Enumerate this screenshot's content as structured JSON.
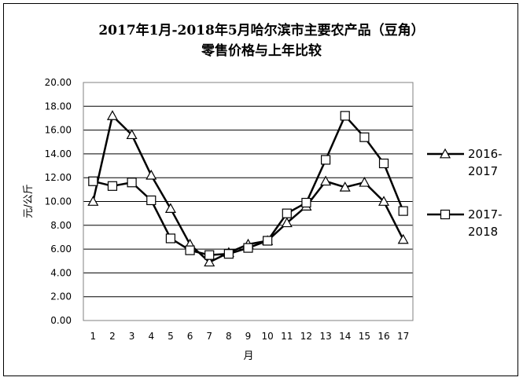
{
  "chart_data": {
    "type": "line",
    "title_line1": "2017年1月-2018年5月哈尔滨市主要农产品（豆角）",
    "title_line2": "零售价格与上年比较",
    "xlabel": "月",
    "ylabel": "元/公斤",
    "ylim": [
      0,
      20
    ],
    "yticks": [
      "0.00",
      "2.00",
      "4.00",
      "6.00",
      "8.00",
      "10.00",
      "12.00",
      "14.00",
      "16.00",
      "18.00",
      "20.00"
    ],
    "categories": [
      "1",
      "2",
      "3",
      "4",
      "5",
      "6",
      "7",
      "8",
      "9",
      "10",
      "11",
      "12",
      "13",
      "14",
      "15",
      "16",
      "17"
    ],
    "grid": true,
    "legend_position": "right",
    "series": [
      {
        "name": "2016-2017",
        "legend_line1": "2016-",
        "legend_line2": "2017",
        "marker": "triangle",
        "color": "#000000",
        "values": [
          10.0,
          17.2,
          15.6,
          12.2,
          9.4,
          6.4,
          4.9,
          5.7,
          6.4,
          6.7,
          8.2,
          9.6,
          11.7,
          11.2,
          11.6,
          10.0,
          6.8
        ]
      },
      {
        "name": "2017-2018",
        "legend_line1": "2017-",
        "legend_line2": "2018",
        "marker": "square",
        "color": "#000000",
        "values": [
          11.7,
          11.3,
          11.6,
          10.1,
          6.9,
          5.9,
          5.5,
          5.6,
          6.1,
          6.7,
          9.0,
          9.9,
          13.5,
          17.2,
          15.4,
          13.2,
          9.2
        ]
      }
    ]
  }
}
